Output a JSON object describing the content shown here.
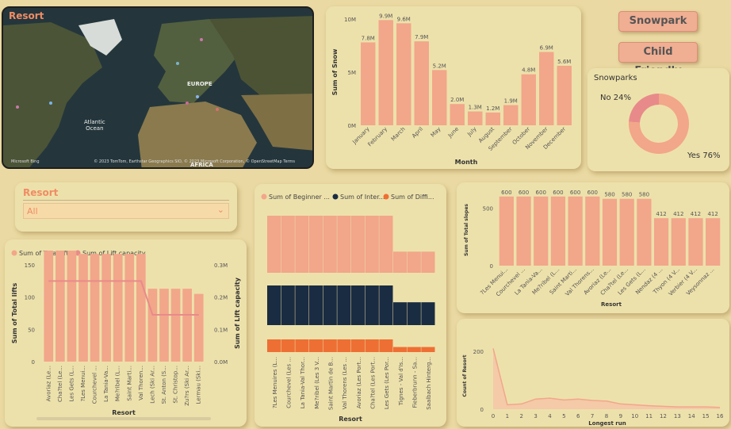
{
  "map": {
    "title": "Resort",
    "labels": {
      "europe": "EUROPE",
      "ocean": "Atlantic\nOcean",
      "africa": "AFRICA"
    },
    "attribution": "© 2023 TomTom, Earthstar Geographics SIO, © 2023 Microsoft Corporation, © OpenStreetMap  Terms",
    "bing": "Microsoft Bing"
  },
  "buttons": {
    "snowpark": "Snowpark",
    "child_friendly": "Child Friendly"
  },
  "slicer": {
    "title": "Resort",
    "value": "All"
  },
  "colors": {
    "salmon": "#f2a68a",
    "navy": "#1a2c42",
    "orange": "#ee6f34",
    "pink": "#e88a8a"
  },
  "chart_data": [
    {
      "id": "snow",
      "type": "bar",
      "xlabel": "Month",
      "ylabel": "Sum of Snow",
      "ylim": [
        0,
        10
      ],
      "yticks": [
        "0M",
        "5M",
        "10M"
      ],
      "categories": [
        "January",
        "February",
        "March",
        "April",
        "May",
        "June",
        "July",
        "August",
        "September",
        "October",
        "November",
        "December"
      ],
      "values": [
        7.8,
        9.9,
        9.6,
        7.9,
        5.2,
        2.0,
        1.3,
        1.2,
        1.9,
        4.8,
        6.9,
        5.6
      ],
      "labels": [
        "7.8M",
        "9.9M",
        "9.6M",
        "7.9M",
        "5.2M",
        "2.0M",
        "1.3M",
        "1.2M",
        "1.9M",
        "4.8M",
        "6.9M",
        "5.6M"
      ]
    },
    {
      "id": "snowparks",
      "type": "pie",
      "title": "Snowparks",
      "categories": [
        "Yes",
        "No"
      ],
      "values": [
        76,
        24
      ],
      "labels": [
        "Yes 76%",
        "No 24%"
      ]
    },
    {
      "id": "slopes",
      "type": "bar",
      "xlabel": "Resort",
      "ylabel": "Sum of Total slopes",
      "ylim": [
        0,
        640
      ],
      "yticks": [
        "0",
        "500"
      ],
      "categories": [
        "?Les Menui...",
        "Courchevel ...",
        "La Tania-Va...",
        "Me?ribel (L...",
        "Saint Marti...",
        "Val Thorens...",
        "Avoriaz (Le...",
        "Cha?tel (Le...",
        "Les Gets (L...",
        "Nendaz (4 ...",
        "Thyon (4 V...",
        "Verbier (4 V...",
        "Veysonnaz ..."
      ],
      "values": [
        600,
        600,
        600,
        600,
        600,
        600,
        580,
        580,
        580,
        412,
        412,
        412,
        412
      ]
    },
    {
      "id": "lifts",
      "type": "bar",
      "legend": [
        "Sum of Total lifts",
        "Sum of Lift capacity"
      ],
      "xlabel": "Resort",
      "ylabel": "Sum of Total lifts",
      "y2label": "Sum of Lift capacity",
      "ylim": [
        0,
        150
      ],
      "yticks": [
        "0",
        "50",
        "100",
        "150"
      ],
      "y2lim": [
        0,
        0.3
      ],
      "y2ticks": [
        "0.0M",
        "0.1M",
        "0.2M",
        "0.3M"
      ],
      "categories": [
        "Avoriaz (Le...",
        "Cha?tel (Le...",
        "Les Gets (L...",
        "?Les Menui...",
        "Courchevel ...",
        "La Tania-Va...",
        "Me?ribel (L...",
        "Saint Marti...",
        "Val Thoren...",
        "Lech (Ski Ar...",
        "St. Anton (S...",
        "St. Christop...",
        "Zu?rs (Ski Ar...",
        "Lermau (Ski..."
      ],
      "values": [
        172,
        172,
        172,
        167,
        167,
        167,
        167,
        167,
        167,
        113,
        113,
        113,
        113,
        105
      ],
      "line": [
        0.25,
        0.25,
        0.25,
        0.25,
        0.25,
        0.25,
        0.25,
        0.25,
        0.25,
        0.145,
        0.145,
        0.145,
        0.145,
        0.145
      ]
    },
    {
      "id": "ribbon",
      "type": "area",
      "legend": [
        "Sum of Beginner ...",
        "Sum of Inter...",
        "Sum of Diffi..."
      ],
      "xlabel": "Resort",
      "categories": [
        "?Les Menuires (L...",
        "Courchevel (Les ...",
        "La Tania-Val Thor...",
        "Me?ribel (Les 3 V...",
        "Saint Martin de B...",
        "Val Thorens (Les ...",
        "Avoriaz (Les Port...",
        "Cha?tel (Les Port...",
        "Les Gets (Les Por...",
        "Tignes - Val d'Is...",
        "Fieberbrunn - Sa...",
        "Saalbach Hinterg..."
      ],
      "series": [
        {
          "name": "Beginner",
          "values": [
            100,
            100,
            100,
            100,
            100,
            100,
            100,
            100,
            100,
            37,
            37,
            37
          ]
        },
        {
          "name": "Intermediate",
          "values": [
            59,
            59,
            59,
            59,
            59,
            59,
            59,
            59,
            59,
            34,
            34,
            34
          ]
        },
        {
          "name": "Difficult",
          "values": [
            20,
            20,
            20,
            20,
            20,
            20,
            20,
            20,
            20,
            8,
            8,
            8
          ]
        }
      ]
    },
    {
      "id": "longest",
      "type": "area",
      "xlabel": "Longest run",
      "ylabel": "Count of Resort",
      "ylim": [
        0,
        230
      ],
      "yticks": [
        "0",
        "200"
      ],
      "x": [
        0,
        1,
        2,
        3,
        4,
        5,
        6,
        7,
        8,
        9,
        10,
        11,
        12,
        13,
        14,
        15,
        16
      ],
      "values": [
        210,
        15,
        18,
        35,
        38,
        32,
        35,
        30,
        28,
        18,
        15,
        12,
        10,
        8,
        8,
        8,
        6
      ]
    }
  ]
}
